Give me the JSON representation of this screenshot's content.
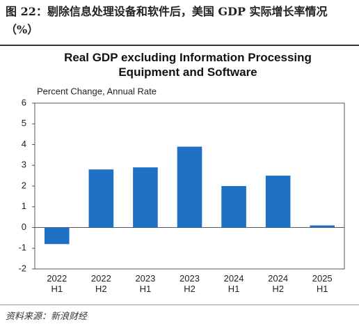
{
  "header": {
    "title": "图 22：剔除信息处理设备和软件后，美国 GDP 实际增长率情况（%）"
  },
  "chart_data": {
    "type": "bar",
    "title": "Real GDP excluding Information Processing Equipment and Software",
    "subtitle": "Percent Change, Annual Rate",
    "categories": [
      "2022 H1",
      "2022 H2",
      "2023 H1",
      "2023 H2",
      "2024 H1",
      "2024 H2",
      "2025 H1"
    ],
    "values": [
      -0.8,
      2.8,
      2.9,
      3.9,
      2.0,
      2.5,
      0.1
    ],
    "color": "#1f6fc5",
    "ylim": [
      -2,
      6
    ],
    "yticks": [
      -2,
      -1,
      0,
      1,
      2,
      3,
      4,
      5,
      6
    ],
    "grid": false
  },
  "footer": {
    "source": "资料来源：新浪财经"
  }
}
